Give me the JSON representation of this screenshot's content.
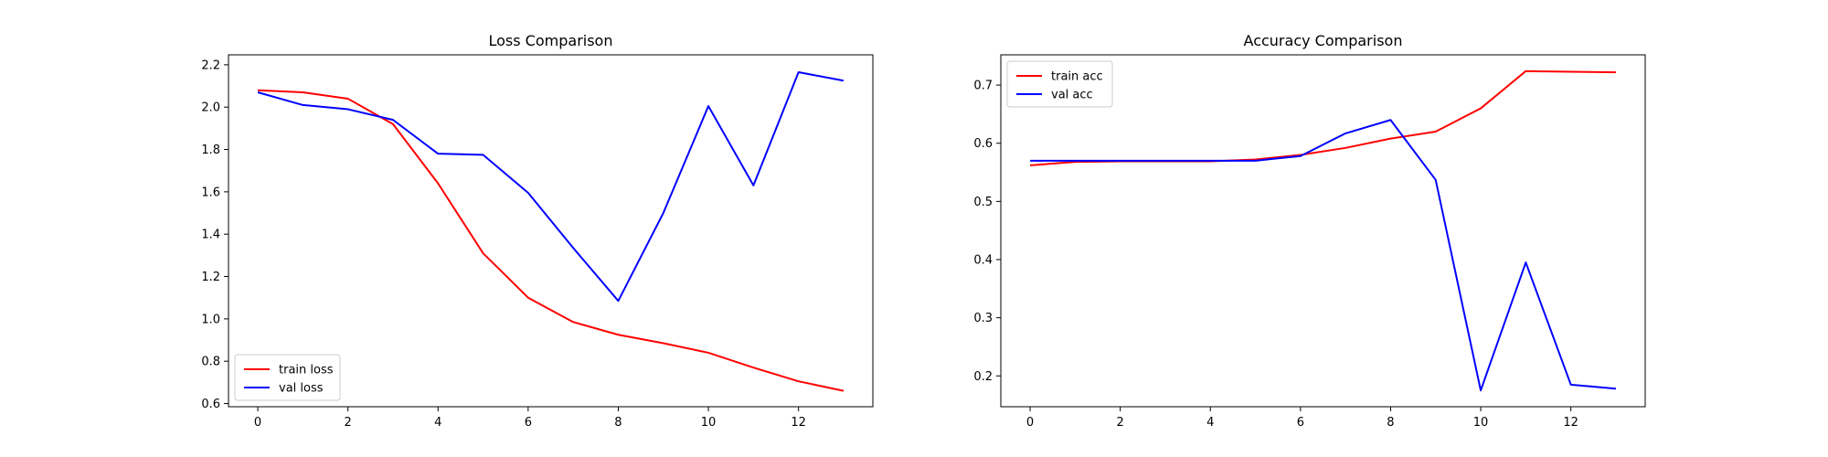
{
  "chart_data": [
    {
      "type": "line",
      "title": "Loss Comparison",
      "xlabel": "",
      "ylabel": "",
      "xlim": [
        -0.65,
        13.65
      ],
      "ylim": [
        0.585,
        2.247
      ],
      "xticks": [
        0,
        2,
        4,
        6,
        8,
        10,
        12
      ],
      "xtick_labels": [
        "0",
        "2",
        "4",
        "6",
        "8",
        "10",
        "12"
      ],
      "yticks": [
        0.6,
        0.8,
        1.0,
        1.2,
        1.4,
        1.6,
        1.8,
        2.0,
        2.2
      ],
      "ytick_labels": [
        "0.6",
        "0.8",
        "1.0",
        "1.2",
        "1.4",
        "1.6",
        "1.8",
        "2.0",
        "2.2"
      ],
      "legend_position": "lower-left",
      "grid": false,
      "x": [
        0,
        1,
        2,
        3,
        4,
        5,
        6,
        7,
        8,
        9,
        10,
        11,
        12,
        13
      ],
      "series": [
        {
          "name": "train loss",
          "color": "#ff0000",
          "values": [
            2.08,
            2.07,
            2.04,
            1.92,
            1.64,
            1.31,
            1.1,
            0.985,
            0.925,
            0.885,
            0.84,
            0.77,
            0.705,
            0.66
          ]
        },
        {
          "name": "val loss",
          "color": "#0000ff",
          "values": [
            2.07,
            2.01,
            1.99,
            1.94,
            1.78,
            1.775,
            1.595,
            1.335,
            1.085,
            1.5,
            2.005,
            1.63,
            2.165,
            2.125
          ]
        }
      ]
    },
    {
      "type": "line",
      "title": "Accuracy Comparison",
      "xlabel": "",
      "ylabel": "",
      "xlim": [
        -0.65,
        13.65
      ],
      "ylim": [
        0.147,
        0.752
      ],
      "xticks": [
        0,
        2,
        4,
        6,
        8,
        10,
        12
      ],
      "xtick_labels": [
        "0",
        "2",
        "4",
        "6",
        "8",
        "10",
        "12"
      ],
      "yticks": [
        0.2,
        0.3,
        0.4,
        0.5,
        0.6,
        0.7
      ],
      "ytick_labels": [
        "0.2",
        "0.3",
        "0.4",
        "0.5",
        "0.6",
        "0.7"
      ],
      "legend_position": "upper-left",
      "grid": false,
      "x": [
        0,
        1,
        2,
        3,
        4,
        5,
        6,
        7,
        8,
        9,
        10,
        11,
        12,
        13
      ],
      "series": [
        {
          "name": "train acc",
          "color": "#ff0000",
          "values": [
            0.562,
            0.568,
            0.569,
            0.569,
            0.569,
            0.572,
            0.58,
            0.592,
            0.608,
            0.62,
            0.66,
            0.724,
            0.723,
            0.722
          ]
        },
        {
          "name": "val acc",
          "color": "#0000ff",
          "values": [
            0.57,
            0.57,
            0.57,
            0.57,
            0.57,
            0.57,
            0.578,
            0.617,
            0.64,
            0.537,
            0.175,
            0.395,
            0.185,
            0.178
          ]
        }
      ]
    }
  ]
}
